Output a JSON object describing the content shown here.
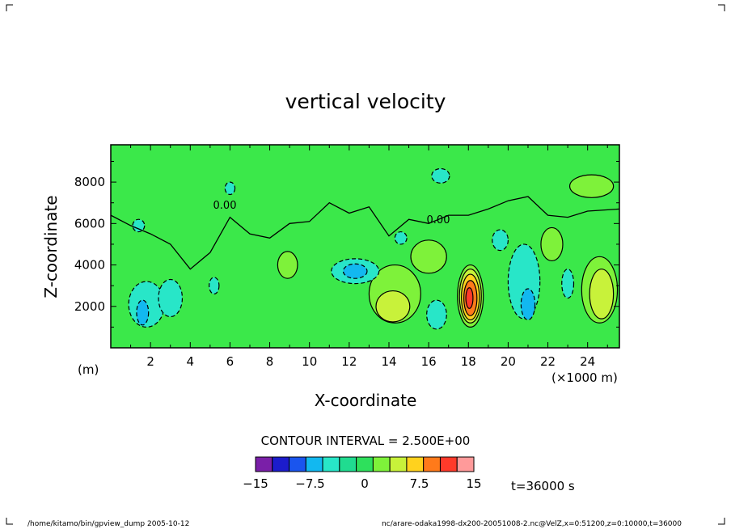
{
  "chart_data": {
    "type": "heatmap",
    "title": "vertical velocity",
    "xlabel": "X-coordinate",
    "ylabel": "Z-coordinate",
    "x_unit_label": "(m)",
    "x_scale_label": "(×1000 m)",
    "xlim": [
      0,
      25.6
    ],
    "ylim": [
      0,
      9800
    ],
    "x_ticks": [
      "2",
      "4",
      "6",
      "8",
      "10",
      "12",
      "14",
      "16",
      "18",
      "20",
      "22",
      "24"
    ],
    "y_ticks": [
      "2000",
      "4000",
      "6000",
      "8000"
    ],
    "contour_interval_label": "CONTOUR INTERVAL = 2.500E+00",
    "contour_labels": [
      "0.00",
      "0.00"
    ],
    "time_label": "t=36000 s",
    "colorbar": {
      "levels": [
        -15,
        -12.5,
        -10,
        -7.5,
        -5,
        -2.5,
        0,
        2.5,
        5,
        7.5,
        10,
        12.5,
        15
      ],
      "tick_labels": [
        "−15",
        "−7.5",
        "0",
        "7.5",
        "15"
      ],
      "colors": [
        "#7a1fa8",
        "#1c1ccc",
        "#1a55ee",
        "#12b8f0",
        "#28e6c8",
        "#20dc90",
        "#2ee05c",
        "#7ef23a",
        "#c8f23a",
        "#ffd21e",
        "#ff7a1a",
        "#ff3a2a",
        "#ff9a9a"
      ]
    },
    "background_color": "#3be84a",
    "regions": [
      {
        "level": 2.5,
        "cx": 18.1,
        "cy": 2500,
        "rx": 0.65,
        "ry": 1500
      },
      {
        "level": 5,
        "cx": 18.1,
        "cy": 2500,
        "rx": 0.55,
        "ry": 1300
      },
      {
        "level": 7.5,
        "cx": 18.1,
        "cy": 2450,
        "rx": 0.45,
        "ry": 1100
      },
      {
        "level": 10,
        "cx": 18.1,
        "cy": 2400,
        "rx": 0.33,
        "ry": 850
      },
      {
        "level": 12.5,
        "cx": 18.05,
        "cy": 2400,
        "rx": 0.18,
        "ry": 500
      },
      {
        "level": 2.5,
        "cx": 14.3,
        "cy": 2600,
        "rx": 1.3,
        "ry": 1400
      },
      {
        "level": 5,
        "cx": 14.2,
        "cy": 2000,
        "rx": 0.85,
        "ry": 750
      },
      {
        "level": 2.5,
        "cx": 16.0,
        "cy": 4400,
        "rx": 0.9,
        "ry": 800
      },
      {
        "level": 2.5,
        "cx": 24.6,
        "cy": 2800,
        "rx": 0.9,
        "ry": 1600
      },
      {
        "level": 5,
        "cx": 24.7,
        "cy": 2600,
        "rx": 0.6,
        "ry": 1200
      },
      {
        "level": 2.5,
        "cx": 22.2,
        "cy": 5000,
        "rx": 0.55,
        "ry": 800
      },
      {
        "level": 2.5,
        "cx": 24.2,
        "cy": 7800,
        "rx": 1.1,
        "ry": 550
      },
      {
        "level": 2.5,
        "cx": 8.9,
        "cy": 4000,
        "rx": 0.5,
        "ry": 650
      },
      {
        "level": -2.5,
        "cx": 1.8,
        "cy": 2100,
        "rx": 0.9,
        "ry": 1100
      },
      {
        "level": -5,
        "cx": 1.6,
        "cy": 1700,
        "rx": 0.3,
        "ry": 600
      },
      {
        "level": -2.5,
        "cx": 3.0,
        "cy": 2400,
        "rx": 0.6,
        "ry": 900
      },
      {
        "level": -2.5,
        "cx": 12.3,
        "cy": 3700,
        "rx": 1.2,
        "ry": 600
      },
      {
        "level": -5,
        "cx": 12.3,
        "cy": 3700,
        "rx": 0.6,
        "ry": 350
      },
      {
        "level": -2.5,
        "cx": 20.8,
        "cy": 3200,
        "rx": 0.8,
        "ry": 1800
      },
      {
        "level": -5,
        "cx": 21.0,
        "cy": 2100,
        "rx": 0.35,
        "ry": 750
      },
      {
        "level": -2.5,
        "cx": 16.4,
        "cy": 1600,
        "rx": 0.5,
        "ry": 700
      },
      {
        "level": -2.5,
        "cx": 19.6,
        "cy": 5200,
        "rx": 0.4,
        "ry": 500
      },
      {
        "level": -2.5,
        "cx": 1.4,
        "cy": 5900,
        "rx": 0.3,
        "ry": 300
      },
      {
        "level": -2.5,
        "cx": 5.2,
        "cy": 3000,
        "rx": 0.25,
        "ry": 400
      },
      {
        "level": -2.5,
        "cx": 23.0,
        "cy": 3100,
        "rx": 0.3,
        "ry": 700
      },
      {
        "level": -2.5,
        "cx": 16.6,
        "cy": 8300,
        "rx": 0.45,
        "ry": 350
      },
      {
        "level": -2.5,
        "cx": 6.0,
        "cy": 7700,
        "rx": 0.25,
        "ry": 300
      },
      {
        "level": -2.5,
        "cx": 14.6,
        "cy": 5300,
        "rx": 0.3,
        "ry": 300
      }
    ],
    "zero_contour_x": [
      0.0,
      1.0,
      2.0,
      3.0,
      4.0,
      5.0,
      6.0,
      7.0,
      8.0,
      9.0,
      10.0,
      11.0,
      12.0,
      13.0,
      14.0,
      15.0,
      16.0,
      17.0,
      18.0,
      19.0,
      20.0,
      21.0,
      22.0,
      23.0,
      24.0,
      25.6
    ],
    "zero_contour_z": [
      6400,
      5900,
      5500,
      5000,
      3800,
      4600,
      6300,
      5500,
      5300,
      6000,
      6100,
      7000,
      6500,
      6800,
      5400,
      6200,
      6000,
      6400,
      6400,
      6700,
      7100,
      7300,
      6400,
      6300,
      6600,
      6700
    ]
  },
  "footer": {
    "left": "/home/kitamo/bin/gpview_dump  2005-10-12",
    "right": "nc/arare-odaka1998-dx200-20051008-2.nc@VelZ,x=0:51200,z=0:10000,t=36000"
  }
}
